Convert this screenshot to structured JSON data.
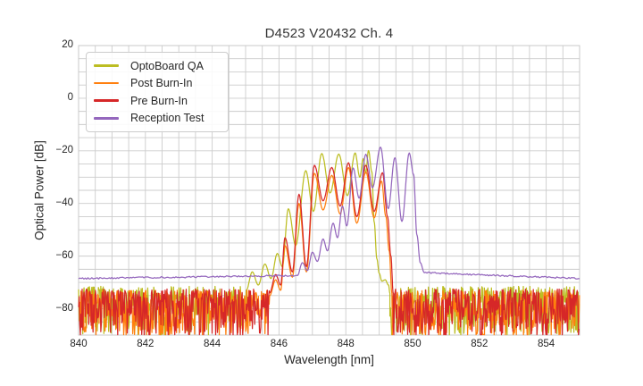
{
  "figure": {
    "title": "D4523 V20432 Ch. 4",
    "background": "#ffffff",
    "text_color": "#262626"
  },
  "chart_data": {
    "type": "line",
    "title": "D4523 V20432 Ch. 4",
    "xlabel": "Wavelength [nm]",
    "ylabel": "Optical Power [dB]",
    "xlim": [
      840,
      855
    ],
    "ylim": [
      -90,
      20
    ],
    "xticks": [
      840,
      842,
      844,
      846,
      848,
      850,
      852,
      854
    ],
    "yticks": [
      20,
      0,
      -20,
      -40,
      -60,
      -80
    ],
    "x_minor_step": 0.5,
    "y_minor_step": 5,
    "grid": true,
    "grid_color": "#cccccc",
    "spine_color": "#c8c8c8",
    "legend": {
      "position": "upper-left"
    },
    "series": [
      {
        "name": "OptoBoard QA",
        "color": "#bcbd22",
        "description": "noisy floor ~-78 dB, laser modes 845-849.3 nm peaking ~-20 dB at 847.3-848.7 nm",
        "segments": [
          {
            "type": "noise",
            "x0": 840,
            "x1": 845.02,
            "top": -71.5,
            "depth": 19,
            "step": 0.018,
            "seed": 101
          },
          {
            "type": "modes",
            "points": [
              [
                845.02,
                -73
              ],
              [
                845.2,
                -66
              ],
              [
                845.38,
                -71
              ],
              [
                845.58,
                -63
              ],
              [
                845.76,
                -68.5
              ],
              [
                845.95,
                -59
              ],
              [
                846.1,
                -64
              ],
              [
                846.28,
                -42
              ],
              [
                846.5,
                -56
              ],
              [
                846.8,
                -27.5
              ],
              [
                847.03,
                -43
              ],
              [
                847.28,
                -21
              ],
              [
                847.53,
                -36
              ],
              [
                847.79,
                -21.2
              ],
              [
                848.05,
                -37
              ],
              [
                848.28,
                -20.8
              ],
              [
                848.42,
                -30
              ],
              [
                848.52,
                -23
              ],
              [
                848.6,
                -28.5
              ],
              [
                848.68,
                -19.9
              ],
              [
                848.78,
                -28
              ],
              [
                848.85,
                -47
              ],
              [
                848.93,
                -61
              ],
              [
                849.0,
                -66.5
              ],
              [
                849.08,
                -69.5
              ],
              [
                849.18,
                -69
              ],
              [
                849.28,
                -71
              ],
              [
                849.32,
                -74
              ]
            ]
          },
          {
            "type": "noise",
            "x0": 849.32,
            "x1": 855,
            "top": -71.5,
            "depth": 19,
            "step": 0.018,
            "seed": 102
          }
        ]
      },
      {
        "name": "Post Burn-In",
        "color": "#ff7f0e",
        "description": "noisy floor ~-79 dB, modes 845.7-849.4 nm peaking ~-26 dB at 848.1 nm",
        "segments": [
          {
            "type": "noise",
            "x0": 840,
            "x1": 845.72,
            "top": -73,
            "depth": 18,
            "step": 0.018,
            "seed": 201
          },
          {
            "type": "modes",
            "points": [
              [
                845.72,
                -75
              ],
              [
                845.9,
                -69
              ],
              [
                846.05,
                -73
              ],
              [
                846.18,
                -56
              ],
              [
                846.4,
                -68
              ],
              [
                846.6,
                -40
              ],
              [
                846.82,
                -66
              ],
              [
                847.06,
                -28.5
              ],
              [
                847.32,
                -42.5
              ],
              [
                847.58,
                -29.3
              ],
              [
                847.83,
                -44
              ],
              [
                848.08,
                -26.3
              ],
              [
                848.33,
                -47.5
              ],
              [
                848.6,
                -28
              ],
              [
                848.85,
                -45.5
              ],
              [
                849.07,
                -31.5
              ],
              [
                849.2,
                -45
              ],
              [
                849.3,
                -58
              ],
              [
                849.38,
                -74
              ]
            ]
          },
          {
            "type": "noise",
            "x0": 849.38,
            "x1": 855,
            "top": -73,
            "depth": 18,
            "step": 0.018,
            "seed": 202
          }
        ]
      },
      {
        "name": "Pre Burn-In",
        "color": "#d62728",
        "description": "noisy floor ~-78 dB, modes 845.7-849.4 nm peaking ~-24.5 dB at 848.1 nm",
        "segments": [
          {
            "type": "noise",
            "x0": 840,
            "x1": 845.72,
            "top": -72.5,
            "depth": 18.5,
            "step": 0.018,
            "seed": 301
          },
          {
            "type": "modes",
            "points": [
              [
                845.72,
                -74
              ],
              [
                845.9,
                -67
              ],
              [
                846.05,
                -71
              ],
              [
                846.18,
                -53
              ],
              [
                846.4,
                -66
              ],
              [
                846.6,
                -36.5
              ],
              [
                846.82,
                -64
              ],
              [
                847.06,
                -25.5
              ],
              [
                847.32,
                -39
              ],
              [
                847.58,
                -26.3
              ],
              [
                847.83,
                -41
              ],
              [
                848.08,
                -24.5
              ],
              [
                848.33,
                -45
              ],
              [
                848.6,
                -25.5
              ],
              [
                848.85,
                -43
              ],
              [
                849.1,
                -28.3
              ],
              [
                849.25,
                -45
              ],
              [
                849.35,
                -60
              ],
              [
                849.42,
                -74
              ]
            ]
          },
          {
            "type": "noise",
            "x0": 849.42,
            "x1": 855,
            "top": -72.5,
            "depth": 18.5,
            "step": 0.018,
            "seed": 302
          }
        ]
      },
      {
        "name": "Reception Test",
        "color": "#9467bd",
        "description": "smooth floor ~-68 dB, modes 846.6-850.3 nm peaking -18.6 dB at 849.0 nm, sharp drop at 850.2 nm",
        "segments": [
          {
            "type": "smooth",
            "x0": 840,
            "x1": 846.55,
            "y0": -68.5,
            "y1": -67.4,
            "jitter": 0.3,
            "step": 0.04,
            "seed": 401
          },
          {
            "type": "modes",
            "points": [
              [
                846.55,
                -67.4
              ],
              [
                846.7,
                -62.5
              ],
              [
                846.85,
                -65.5
              ],
              [
                847.0,
                -58.5
              ],
              [
                847.15,
                -62
              ],
              [
                847.32,
                -53.5
              ],
              [
                847.45,
                -58
              ],
              [
                847.62,
                -47.5
              ],
              [
                847.75,
                -53
              ],
              [
                847.9,
                -41
              ],
              [
                848.03,
                -48.5
              ],
              [
                848.22,
                -26.5
              ],
              [
                848.4,
                -38
              ],
              [
                848.6,
                -21.3
              ],
              [
                848.8,
                -34
              ],
              [
                849.04,
                -18.6
              ],
              [
                849.27,
                -42
              ],
              [
                849.47,
                -22.6
              ],
              [
                849.68,
                -46.8
              ],
              [
                849.9,
                -20.8
              ],
              [
                850.03,
                -29
              ],
              [
                850.13,
                -52
              ],
              [
                850.23,
                -62.5
              ],
              [
                850.35,
                -66.2
              ]
            ]
          },
          {
            "type": "smooth",
            "x0": 850.35,
            "x1": 855,
            "y0": -66.3,
            "y1": -68.5,
            "jitter": 0.3,
            "step": 0.04,
            "seed": 402
          }
        ]
      }
    ]
  }
}
